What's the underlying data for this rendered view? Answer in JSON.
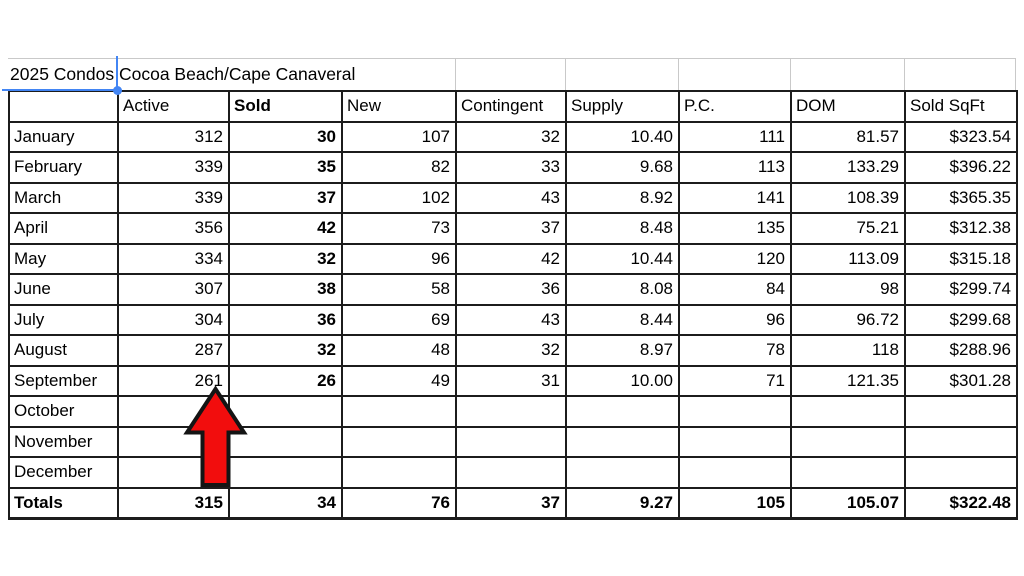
{
  "title": "2025 Condos Cocoa Beach/Cape Canaveral",
  "selection": {
    "accent_color": "#4285f4"
  },
  "table": {
    "headers": [
      "",
      "Active",
      "Sold",
      "New",
      "Contingent",
      "Supply",
      "P.C.",
      "DOM",
      "Sold SqFt"
    ],
    "bold_header_index": 2,
    "column_keys": [
      "month",
      "active",
      "sold",
      "new",
      "contingent",
      "supply",
      "pc",
      "dom",
      "sold-sqft"
    ],
    "rows": [
      {
        "label": "January",
        "values": [
          "312",
          "30",
          "107",
          "32",
          "10.40",
          "111",
          "81.57",
          "$323.54"
        ]
      },
      {
        "label": "February",
        "values": [
          "339",
          "35",
          "82",
          "33",
          "9.68",
          "113",
          "133.29",
          "$396.22"
        ]
      },
      {
        "label": "March",
        "values": [
          "339",
          "37",
          "102",
          "43",
          "8.92",
          "141",
          "108.39",
          "$365.35"
        ]
      },
      {
        "label": "April",
        "values": [
          "356",
          "42",
          "73",
          "37",
          "8.48",
          "135",
          "75.21",
          "$312.38"
        ]
      },
      {
        "label": "May",
        "values": [
          "334",
          "32",
          "96",
          "42",
          "10.44",
          "120",
          "113.09",
          "$315.18"
        ]
      },
      {
        "label": "June",
        "values": [
          "307",
          "38",
          "58",
          "36",
          "8.08",
          "84",
          "98",
          "$299.74"
        ]
      },
      {
        "label": "July",
        "values": [
          "304",
          "36",
          "69",
          "43",
          "8.44",
          "96",
          "96.72",
          "$299.68"
        ]
      },
      {
        "label": "August",
        "values": [
          "287",
          "32",
          "48",
          "32",
          "8.97",
          "78",
          "118",
          "$288.96"
        ]
      },
      {
        "label": "September",
        "values": [
          "261",
          "26",
          "49",
          "31",
          "10.00",
          "71",
          "121.35",
          "$301.28"
        ]
      },
      {
        "label": "October",
        "values": [
          "",
          "",
          "",
          "",
          "",
          "",
          "",
          ""
        ]
      },
      {
        "label": "November",
        "values": [
          "",
          "",
          "",
          "",
          "",
          "",
          "",
          ""
        ]
      },
      {
        "label": "December",
        "values": [
          "",
          "",
          "",
          "",
          "",
          "",
          "",
          ""
        ]
      }
    ],
    "totals": {
      "label": "Totals",
      "values": [
        "315",
        "34",
        "76",
        "37",
        "9.27",
        "105",
        "105.07",
        "$322.48"
      ]
    }
  },
  "annotation": {
    "arrow_fill": "#f20d0d",
    "arrow_outline": "#141414",
    "points_at_value": "261"
  }
}
